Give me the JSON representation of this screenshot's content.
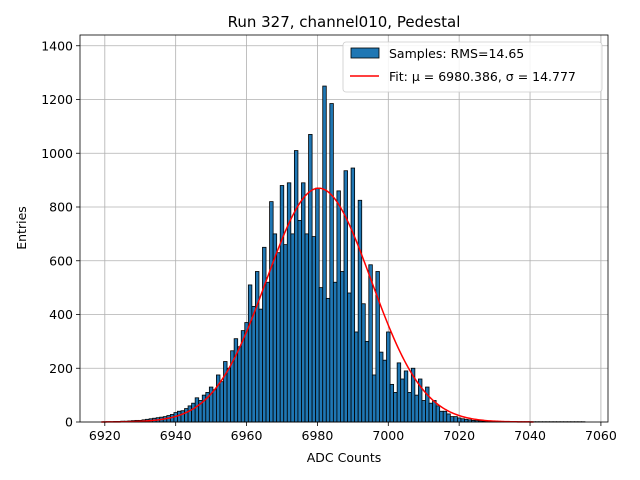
{
  "chart_data": {
    "type": "bar",
    "title": "Run 327, channel010, Pedestal",
    "xlabel": "ADC Counts",
    "ylabel": "Entries",
    "xlim": [
      6913,
      7062
    ],
    "ylim": [
      0,
      1440
    ],
    "xticks": [
      6920,
      6940,
      6960,
      6980,
      7000,
      7020,
      7040,
      7060
    ],
    "yticks": [
      0,
      200,
      400,
      600,
      800,
      1000,
      1200,
      1400
    ],
    "grid": true,
    "legend_position": "top-right",
    "bin_width": 1,
    "histogram": {
      "name": "Samples: RMS=14.65",
      "x": [
        6920,
        6921,
        6922,
        6923,
        6924,
        6925,
        6926,
        6927,
        6928,
        6929,
        6930,
        6931,
        6932,
        6933,
        6934,
        6935,
        6936,
        6937,
        6938,
        6939,
        6940,
        6941,
        6942,
        6943,
        6944,
        6945,
        6946,
        6947,
        6948,
        6949,
        6950,
        6951,
        6952,
        6953,
        6954,
        6955,
        6956,
        6957,
        6958,
        6959,
        6960,
        6961,
        6962,
        6963,
        6964,
        6965,
        6966,
        6967,
        6968,
        6969,
        6970,
        6971,
        6972,
        6973,
        6974,
        6975,
        6976,
        6977,
        6978,
        6979,
        6980,
        6981,
        6982,
        6983,
        6984,
        6985,
        6986,
        6987,
        6988,
        6989,
        6990,
        6991,
        6992,
        6993,
        6994,
        6995,
        6996,
        6997,
        6998,
        6999,
        7000,
        7001,
        7002,
        7003,
        7004,
        7005,
        7006,
        7007,
        7008,
        7009,
        7010,
        7011,
        7012,
        7013,
        7014,
        7015,
        7016,
        7017,
        7018,
        7019,
        7020,
        7021,
        7022,
        7023,
        7024,
        7025,
        7026,
        7027,
        7028,
        7029,
        7030,
        7031,
        7032,
        7033,
        7034,
        7035,
        7036,
        7037,
        7038,
        7039,
        7040,
        7041,
        7042,
        7043,
        7044,
        7045,
        7046,
        7047,
        7048,
        7049,
        7050,
        7051,
        7052,
        7053,
        7054,
        7055
      ],
      "values": [
        1,
        1,
        1,
        2,
        2,
        3,
        3,
        4,
        5,
        6,
        6,
        8,
        10,
        12,
        14,
        16,
        18,
        20,
        24,
        28,
        35,
        40,
        42,
        50,
        60,
        70,
        90,
        80,
        100,
        110,
        130,
        120,
        175,
        150,
        225,
        200,
        265,
        310,
        280,
        340,
        370,
        510,
        430,
        560,
        420,
        650,
        520,
        820,
        700,
        630,
        880,
        660,
        890,
        700,
        1010,
        750,
        890,
        700,
        1070,
        690,
        870,
        500,
        1250,
        460,
        1185,
        520,
        860,
        560,
        935,
        480,
        945,
        335,
        825,
        440,
        300,
        585,
        175,
        560,
        260,
        230,
        335,
        140,
        110,
        220,
        160,
        190,
        110,
        200,
        100,
        160,
        80,
        130,
        70,
        80,
        60,
        40,
        40,
        30,
        20,
        20,
        15,
        12,
        10,
        8,
        6,
        5,
        4,
        3,
        2,
        2,
        1,
        1,
        1,
        1,
        1,
        1,
        1,
        1,
        1,
        1,
        1,
        1,
        1,
        1,
        1,
        1,
        1,
        1,
        1,
        1,
        1,
        1,
        1,
        1,
        1,
        1
      ]
    },
    "fit": {
      "name": "Fit: μ = 6980.386, σ = 14.777",
      "mu": 6980.386,
      "sigma": 14.777,
      "amplitude": 870,
      "x_range": [
        6919,
        7041
      ]
    },
    "colors": {
      "bars": "#1f77b4",
      "bar_edge": "#000000",
      "fit": "#ff0000",
      "grid": "#b0b0b0"
    }
  }
}
